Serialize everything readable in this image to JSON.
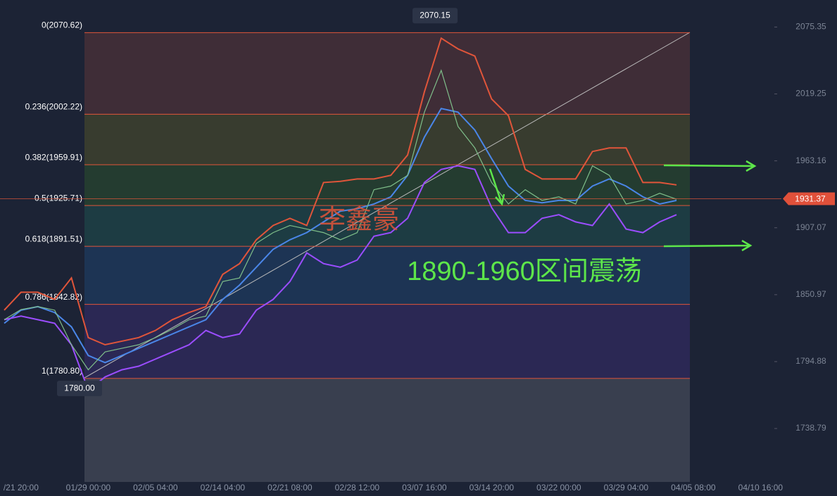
{
  "chart_data": {
    "type": "line",
    "ylim": [
      1694,
      2098
    ],
    "yticks": [
      2075.35,
      2019.25,
      1963.16,
      1907.07,
      1850.97,
      1794.88,
      1738.79
    ],
    "categories": [
      null,
      "/21 20:00",
      null,
      null,
      null,
      "01/29 00:00",
      null,
      null,
      null,
      "02/05 04:00",
      null,
      null,
      null,
      "02/14 04:00",
      null,
      null,
      null,
      "02/21 08:00",
      null,
      null,
      null,
      "02/28 12:00",
      null,
      null,
      null,
      "03/07 16:00",
      null,
      null,
      null,
      "03/14 20:00",
      null,
      null,
      null,
      "03/22 00:00",
      null,
      null,
      null,
      "03/29 04:00",
      null,
      null,
      null,
      "04/05 08:00",
      null,
      null,
      null,
      "04/10 16:00"
    ],
    "series": [
      {
        "color": "#e0553a",
        "values": [
          1838,
          1853,
          1853,
          1847,
          1865,
          1815,
          1809,
          1812,
          1815,
          1821,
          1830,
          1836,
          1841,
          1868,
          1877,
          1897,
          1909,
          1915,
          1909,
          1945,
          1946,
          1948,
          1948,
          1951,
          1968,
          2021,
          2066,
          2057,
          2051,
          2015,
          2001,
          1956,
          1948,
          1948,
          1948,
          1971,
          1974,
          1974,
          1945,
          1945,
          1943,
          null,
          null,
          null,
          null,
          null
        ]
      },
      {
        "color": "#4a86e8",
        "values": [
          1827,
          1838,
          1841,
          1836,
          1824,
          1800,
          1794,
          1800,
          1806,
          1812,
          1818,
          1824,
          1830,
          1847,
          1859,
          1874,
          1889,
          1897,
          1903,
          1912,
          1921,
          1923,
          1927,
          1933,
          1951,
          1983,
          2007,
          2004,
          1989,
          1965,
          1942,
          1930,
          1928,
          1930,
          1930,
          1942,
          1948,
          1942,
          1933,
          1927,
          1930,
          null,
          null,
          null,
          null,
          null
        ]
      },
      {
        "color": "#9b4dff",
        "values": [
          1830,
          1833,
          1830,
          1827,
          1809,
          1771,
          1782,
          1788,
          1791,
          1797,
          1803,
          1809,
          1821,
          1815,
          1818,
          1838,
          1847,
          1862,
          1886,
          1877,
          1874,
          1880,
          1900,
          1903,
          1915,
          1945,
          1956,
          1959,
          1956,
          1924,
          1903,
          1903,
          1915,
          1918,
          1912,
          1909,
          1927,
          1906,
          1903,
          1912,
          1918,
          null,
          null,
          null,
          null,
          null
        ]
      },
      {
        "color": "#7fbf8a",
        "values": [
          1830,
          1838.5,
          1841,
          1838,
          1809,
          1788,
          1803,
          1806,
          1809,
          1815,
          1822,
          1830,
          1833,
          1862,
          1865,
          1894,
          1903,
          1909,
          1906,
          1903,
          1897,
          1903,
          1939,
          1942,
          1951,
          2004,
          2039,
          1992,
          1974,
          1945,
          1927,
          1939,
          1930,
          1933,
          1927,
          1959,
          1951,
          1927,
          1930,
          1936,
          1931,
          null,
          null,
          null,
          null,
          null
        ]
      }
    ],
    "fib_levels": [
      {
        "value": 2070.62,
        "label": "0(2070.62)"
      },
      {
        "value": 2002.22,
        "label": "0.236(2002.22)"
      },
      {
        "value": 1959.91,
        "label": "0.382(1959.91)"
      },
      {
        "value": 1925.71,
        "label": "0.5(1925.71)"
      },
      {
        "value": 1891.51,
        "label": "0.618(1891.51)"
      },
      {
        "value": 1842.82,
        "label": "0.786(1842.82)"
      },
      {
        "value": 1780.8,
        "label": "1(1780.80)"
      }
    ],
    "high_label": 2070.15,
    "low_label": {
      "value": 1780,
      "label": "1780.00"
    },
    "current_price": 1931.37,
    "watermark": "李鑫豪",
    "annotation": "1890-1960区间震荡"
  }
}
